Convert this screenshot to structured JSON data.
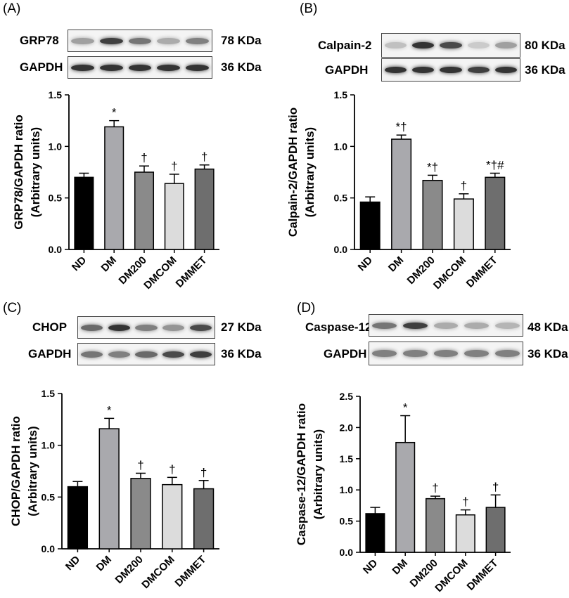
{
  "panels": [
    {
      "label": "(A)",
      "blots": [
        {
          "name": "GRP78",
          "size": "78 KDa",
          "band_intensity": [
            0.35,
            0.8,
            0.55,
            0.3,
            0.5
          ]
        },
        {
          "name": "GAPDH",
          "size": "36 KDa",
          "band_intensity": [
            0.85,
            0.85,
            0.85,
            0.85,
            0.85
          ]
        }
      ]
    },
    {
      "label": "(B)",
      "blots": [
        {
          "name": "Calpain-2",
          "size": "80 KDa",
          "band_intensity": [
            0.2,
            0.85,
            0.75,
            0.15,
            0.35
          ]
        },
        {
          "name": "GAPDH",
          "size": "36 KDa",
          "band_intensity": [
            0.85,
            0.85,
            0.85,
            0.8,
            0.85
          ]
        }
      ]
    },
    {
      "label": "(C)",
      "blots": [
        {
          "name": "CHOP",
          "size": "27 KDa",
          "band_intensity": [
            0.6,
            0.85,
            0.5,
            0.4,
            0.75
          ]
        },
        {
          "name": "GAPDH",
          "size": "36 KDa",
          "band_intensity": [
            0.55,
            0.5,
            0.6,
            0.75,
            0.8
          ]
        }
      ]
    },
    {
      "label": "(D)",
      "blots": [
        {
          "name": "Caspase-12",
          "size": "48 KDa",
          "band_intensity": [
            0.55,
            0.8,
            0.3,
            0.3,
            0.25
          ]
        },
        {
          "name": "GAPDH",
          "size": "36 KDa",
          "band_intensity": [
            0.5,
            0.5,
            0.5,
            0.5,
            0.5
          ]
        }
      ]
    }
  ],
  "colors": [
    "#000000",
    "#a9a9ad",
    "#8a8a8a",
    "#dcdcdc",
    "#6e6e6e"
  ],
  "chart_data": [
    {
      "type": "bar",
      "categories": [
        "ND",
        "DM",
        "DM200",
        "DMCOM",
        "DMMET"
      ],
      "values": [
        0.7,
        1.19,
        0.75,
        0.64,
        0.78
      ],
      "errors": [
        0.04,
        0.06,
        0.06,
        0.09,
        0.04
      ],
      "annotations": [
        "",
        "*",
        "†",
        "†",
        "†"
      ],
      "ylabel": [
        "GRP78/GAPDH ratio",
        "(Arbitrary units)"
      ],
      "ylim": [
        0,
        1.5
      ],
      "yticks": [
        "0.0",
        "0.5",
        "1.0",
        "1.5"
      ]
    },
    {
      "type": "bar",
      "categories": [
        "ND",
        "DM",
        "DM200",
        "DMCOM",
        "DMMET"
      ],
      "values": [
        0.46,
        1.07,
        0.67,
        0.49,
        0.7
      ],
      "errors": [
        0.05,
        0.04,
        0.05,
        0.05,
        0.04
      ],
      "annotations": [
        "",
        "*†",
        "*†",
        "†",
        "*†#"
      ],
      "ylabel": [
        "Calpain-2/GAPDH ratio",
        "(Arbitrary units)"
      ],
      "ylim": [
        0,
        1.5
      ],
      "yticks": [
        "0.0",
        "0.5",
        "1.0",
        "1.5"
      ]
    },
    {
      "type": "bar",
      "categories": [
        "ND",
        "DM",
        "DM200",
        "DMCOM",
        "DMMET"
      ],
      "values": [
        0.6,
        1.16,
        0.68,
        0.62,
        0.58
      ],
      "errors": [
        0.05,
        0.1,
        0.05,
        0.07,
        0.08
      ],
      "annotations": [
        "",
        "*",
        "†",
        "†",
        "†"
      ],
      "ylabel": [
        "CHOP/GAPDH ratio",
        "(Arbitrary units)"
      ],
      "ylim": [
        0,
        1.5
      ],
      "yticks": [
        "0.0",
        "0.5",
        "1.0",
        "1.5"
      ]
    },
    {
      "type": "bar",
      "categories": [
        "ND",
        "DM",
        "DM200",
        "DMCOM",
        "DMMET"
      ],
      "values": [
        0.62,
        1.76,
        0.86,
        0.6,
        0.72
      ],
      "errors": [
        0.1,
        0.43,
        0.04,
        0.08,
        0.2
      ],
      "annotations": [
        "",
        "*",
        "†",
        "†",
        "†"
      ],
      "ylabel": [
        "Caspase-12/GAPDH ratio",
        "(Arbitrary units)"
      ],
      "ylim": [
        0,
        2.5
      ],
      "yticks": [
        "0.0",
        "0.5",
        "1.0",
        "1.5",
        "2.0",
        "2.5"
      ]
    }
  ]
}
